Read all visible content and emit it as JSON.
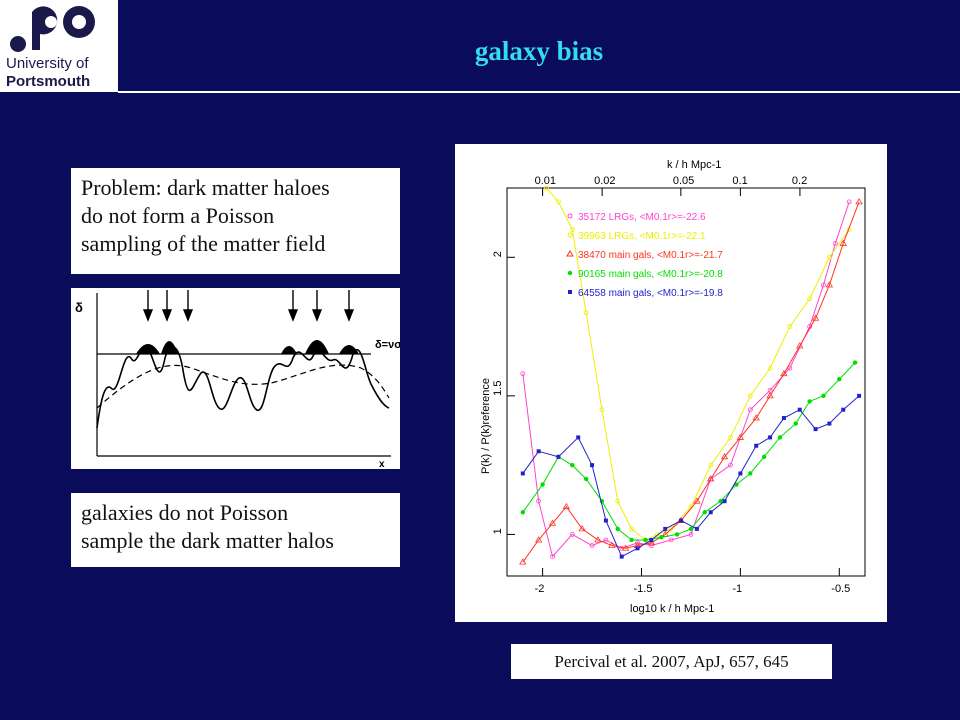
{
  "header": {
    "logo_line1": "University of",
    "logo_line2": "Portsmouth",
    "title": "galaxy bias"
  },
  "textboxes": {
    "problem_lines": [
      "Problem: dark matter haloes",
      "do not form a Poisson",
      "sampling of the matter field"
    ],
    "galaxies_lines": [
      "galaxies do not Poisson",
      "sample the dark matter halos"
    ]
  },
  "diagram": {
    "y_label": "δ",
    "x_label": "x",
    "threshold_label": "δ=νσ",
    "arrow_count": 6
  },
  "citation": "Percival et al. 2007, ApJ, 657, 645",
  "colors": {
    "background": "#0b0b5c",
    "title": "#33ddee",
    "magenta": "#ff44cc",
    "yellow": "#eeee00",
    "red": "#ff3322",
    "green": "#00dd00",
    "blue": "#2222cc"
  },
  "chart_data": {
    "type": "line",
    "xlabel": "log10 k / h Mpc-1",
    "top_xlabel": "k / h Mpc-1",
    "ylabel": "P(k) / P(k)reference",
    "xlim": [
      -2.18,
      -0.37
    ],
    "ylim": [
      0.85,
      2.25
    ],
    "x_ticks": [
      "-2",
      "-1.5",
      "-1",
      "-0.5"
    ],
    "x_tick_values": [
      -2,
      -1.5,
      -1,
      -0.5
    ],
    "top_ticks": [
      "0.01",
      "0.02",
      "0.05",
      "0.1",
      "0.2"
    ],
    "top_tick_values": [
      -2,
      -1.699,
      -1.301,
      -1,
      -0.699
    ],
    "y_ticks": [
      "1",
      "1.5",
      "2"
    ],
    "y_tick_values": [
      1,
      1.5,
      2
    ],
    "series": [
      {
        "name": "35172 LRGs, <M0.1r>=-22.6",
        "color": "#ff44cc",
        "marker": "o",
        "x": [
          -2.1,
          -2.02,
          -1.95,
          -1.85,
          -1.75,
          -1.68,
          -1.6,
          -1.52,
          -1.45,
          -1.35,
          -1.25,
          -1.15,
          -1.05,
          -0.95,
          -0.85,
          -0.75,
          -0.65,
          -0.58,
          -0.52,
          -0.45
        ],
        "y": [
          1.58,
          1.12,
          0.92,
          1.0,
          0.96,
          0.98,
          0.95,
          0.97,
          0.96,
          0.98,
          1.0,
          1.2,
          1.25,
          1.45,
          1.52,
          1.6,
          1.75,
          1.9,
          2.05,
          2.2
        ]
      },
      {
        "name": "39963 LRGs, <M0.1r>=-22.1",
        "color": "#eeee00",
        "marker": "o",
        "x": [
          -1.98,
          -1.92,
          -1.85,
          -1.78,
          -1.7,
          -1.62,
          -1.55,
          -1.48,
          -1.42,
          -1.35,
          -1.25,
          -1.15,
          -1.05,
          -0.95,
          -0.85,
          -0.75,
          -0.65,
          -0.55,
          -0.45
        ],
        "y": [
          2.25,
          2.2,
          2.1,
          1.8,
          1.45,
          1.12,
          1.02,
          0.98,
          1.0,
          1.02,
          1.1,
          1.25,
          1.35,
          1.5,
          1.6,
          1.75,
          1.85,
          2.0,
          2.1
        ]
      },
      {
        "name": "38470 main gals, <M0.1r>=-21.7",
        "color": "#ff3322",
        "marker": "triangle",
        "x": [
          -2.1,
          -2.02,
          -1.95,
          -1.88,
          -1.8,
          -1.72,
          -1.65,
          -1.58,
          -1.52,
          -1.45,
          -1.38,
          -1.3,
          -1.22,
          -1.15,
          -1.08,
          -1.0,
          -0.92,
          -0.85,
          -0.78,
          -0.7,
          -0.62,
          -0.55,
          -0.48,
          -0.4
        ],
        "y": [
          0.9,
          0.98,
          1.04,
          1.1,
          1.02,
          0.98,
          0.96,
          0.95,
          0.96,
          0.97,
          1.0,
          1.05,
          1.12,
          1.2,
          1.28,
          1.35,
          1.42,
          1.5,
          1.58,
          1.68,
          1.78,
          1.9,
          2.05,
          2.2
        ]
      },
      {
        "name": "90165 main gals, <M0.1r>=-20.8",
        "color": "#00dd00",
        "marker": "filled-o",
        "x": [
          -2.1,
          -2.0,
          -1.92,
          -1.85,
          -1.78,
          -1.7,
          -1.62,
          -1.55,
          -1.48,
          -1.4,
          -1.32,
          -1.25,
          -1.18,
          -1.1,
          -1.02,
          -0.95,
          -0.88,
          -0.8,
          -0.72,
          -0.65,
          -0.58,
          -0.5,
          -0.42
        ],
        "y": [
          1.08,
          1.18,
          1.28,
          1.25,
          1.2,
          1.12,
          1.02,
          0.98,
          0.98,
          0.99,
          1.0,
          1.02,
          1.08,
          1.12,
          1.18,
          1.22,
          1.28,
          1.35,
          1.4,
          1.48,
          1.5,
          1.56,
          1.62
        ]
      },
      {
        "name": "64558 main gals, <M0.1r>=-19.8",
        "color": "#2222cc",
        "marker": "filled-square",
        "x": [
          -2.1,
          -2.02,
          -1.92,
          -1.82,
          -1.75,
          -1.68,
          -1.6,
          -1.52,
          -1.45,
          -1.38,
          -1.3,
          -1.22,
          -1.15,
          -1.08,
          -1.0,
          -0.92,
          -0.85,
          -0.78,
          -0.7,
          -0.62,
          -0.55,
          -0.48,
          -0.4
        ],
        "y": [
          1.22,
          1.3,
          1.28,
          1.35,
          1.25,
          1.05,
          0.92,
          0.95,
          0.98,
          1.02,
          1.05,
          1.02,
          1.08,
          1.12,
          1.22,
          1.32,
          1.35,
          1.42,
          1.45,
          1.38,
          1.4,
          1.45,
          1.5
        ]
      }
    ]
  }
}
